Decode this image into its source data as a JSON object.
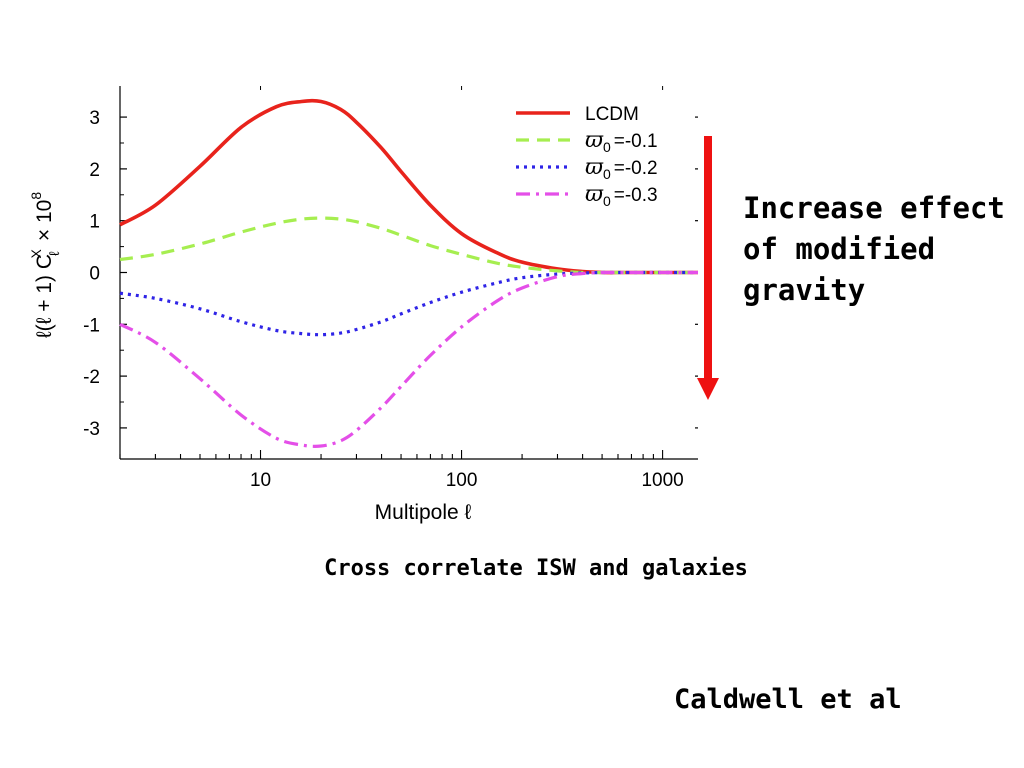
{
  "chart_data": {
    "type": "line",
    "xscale": "log",
    "xlim": [
      2,
      1500
    ],
    "ylim": [
      -3.6,
      3.6
    ],
    "xlabel": "Multipole ℓ",
    "ylabel": "ℓ(ℓ + 1) C",
    "ylabel_sub": "ℓ",
    "ylabel_sup": "X",
    "ylabel_factor": "× 10",
    "ylabel_factor_exp": "8",
    "xticks": [
      10,
      100,
      1000
    ],
    "xtick_labels": [
      "10",
      "100",
      "1000"
    ],
    "yticks": [
      3,
      2,
      1,
      0,
      -1,
      -2,
      -3
    ],
    "ytick_labels": [
      "3",
      "2",
      "1",
      "0",
      "-1",
      "-2",
      "-3"
    ],
    "grid": false,
    "legend_position": "top-right",
    "x": [
      2,
      3,
      5,
      8,
      12,
      16,
      20,
      25,
      30,
      40,
      50,
      70,
      100,
      150,
      200,
      300,
      400,
      500,
      600,
      800,
      1000,
      1500
    ],
    "series": [
      {
        "name": "LCDM",
        "label_symbol": "",
        "label_value": "",
        "color": "#e8231c",
        "dash": "",
        "width": 3.6,
        "values": [
          0.92,
          1.3,
          2.05,
          2.8,
          3.2,
          3.3,
          3.3,
          3.15,
          2.9,
          2.4,
          1.95,
          1.3,
          0.75,
          0.38,
          0.2,
          0.07,
          0.02,
          0.0,
          0.0,
          0.0,
          0.0,
          0.0
        ]
      },
      {
        "name": "",
        "label_symbol": "ϖ",
        "label_sub": "0",
        "label_value": "=-0.1",
        "color": "#a6ee50",
        "dash": "13,8",
        "width": 3.2,
        "values": [
          0.25,
          0.35,
          0.55,
          0.78,
          0.95,
          1.03,
          1.05,
          1.03,
          0.98,
          0.85,
          0.72,
          0.52,
          0.35,
          0.18,
          0.1,
          0.03,
          0.0,
          0.0,
          0.0,
          0.0,
          0.0,
          0.0
        ]
      },
      {
        "name": "",
        "label_symbol": "ϖ",
        "label_sub": "0",
        "label_value": "=-0.2",
        "color": "#2f24e6",
        "dash": "3,5",
        "width": 3.2,
        "values": [
          -0.4,
          -0.5,
          -0.7,
          -0.95,
          -1.12,
          -1.18,
          -1.2,
          -1.17,
          -1.1,
          -0.95,
          -0.8,
          -0.58,
          -0.38,
          -0.2,
          -0.1,
          -0.03,
          -0.01,
          0.0,
          0.0,
          0.0,
          0.0,
          0.0
        ]
      },
      {
        "name": "",
        "label_symbol": "ϖ",
        "label_sub": "0",
        "label_value": "=-0.3",
        "color": "#e44fe8",
        "dash": "14,6,3,6",
        "width": 3.2,
        "values": [
          -1.0,
          -1.35,
          -2.05,
          -2.75,
          -3.2,
          -3.33,
          -3.35,
          -3.25,
          -3.05,
          -2.6,
          -2.2,
          -1.6,
          -1.05,
          -0.55,
          -0.3,
          -0.08,
          -0.02,
          0.0,
          0.0,
          0.0,
          0.0,
          0.0
        ]
      }
    ]
  },
  "arrow_color": "#ee1111",
  "annotation": "Increase effect\nof modified\ngravity",
  "caption": "Cross correlate ISW and galaxies",
  "credit": "Caldwell et al"
}
